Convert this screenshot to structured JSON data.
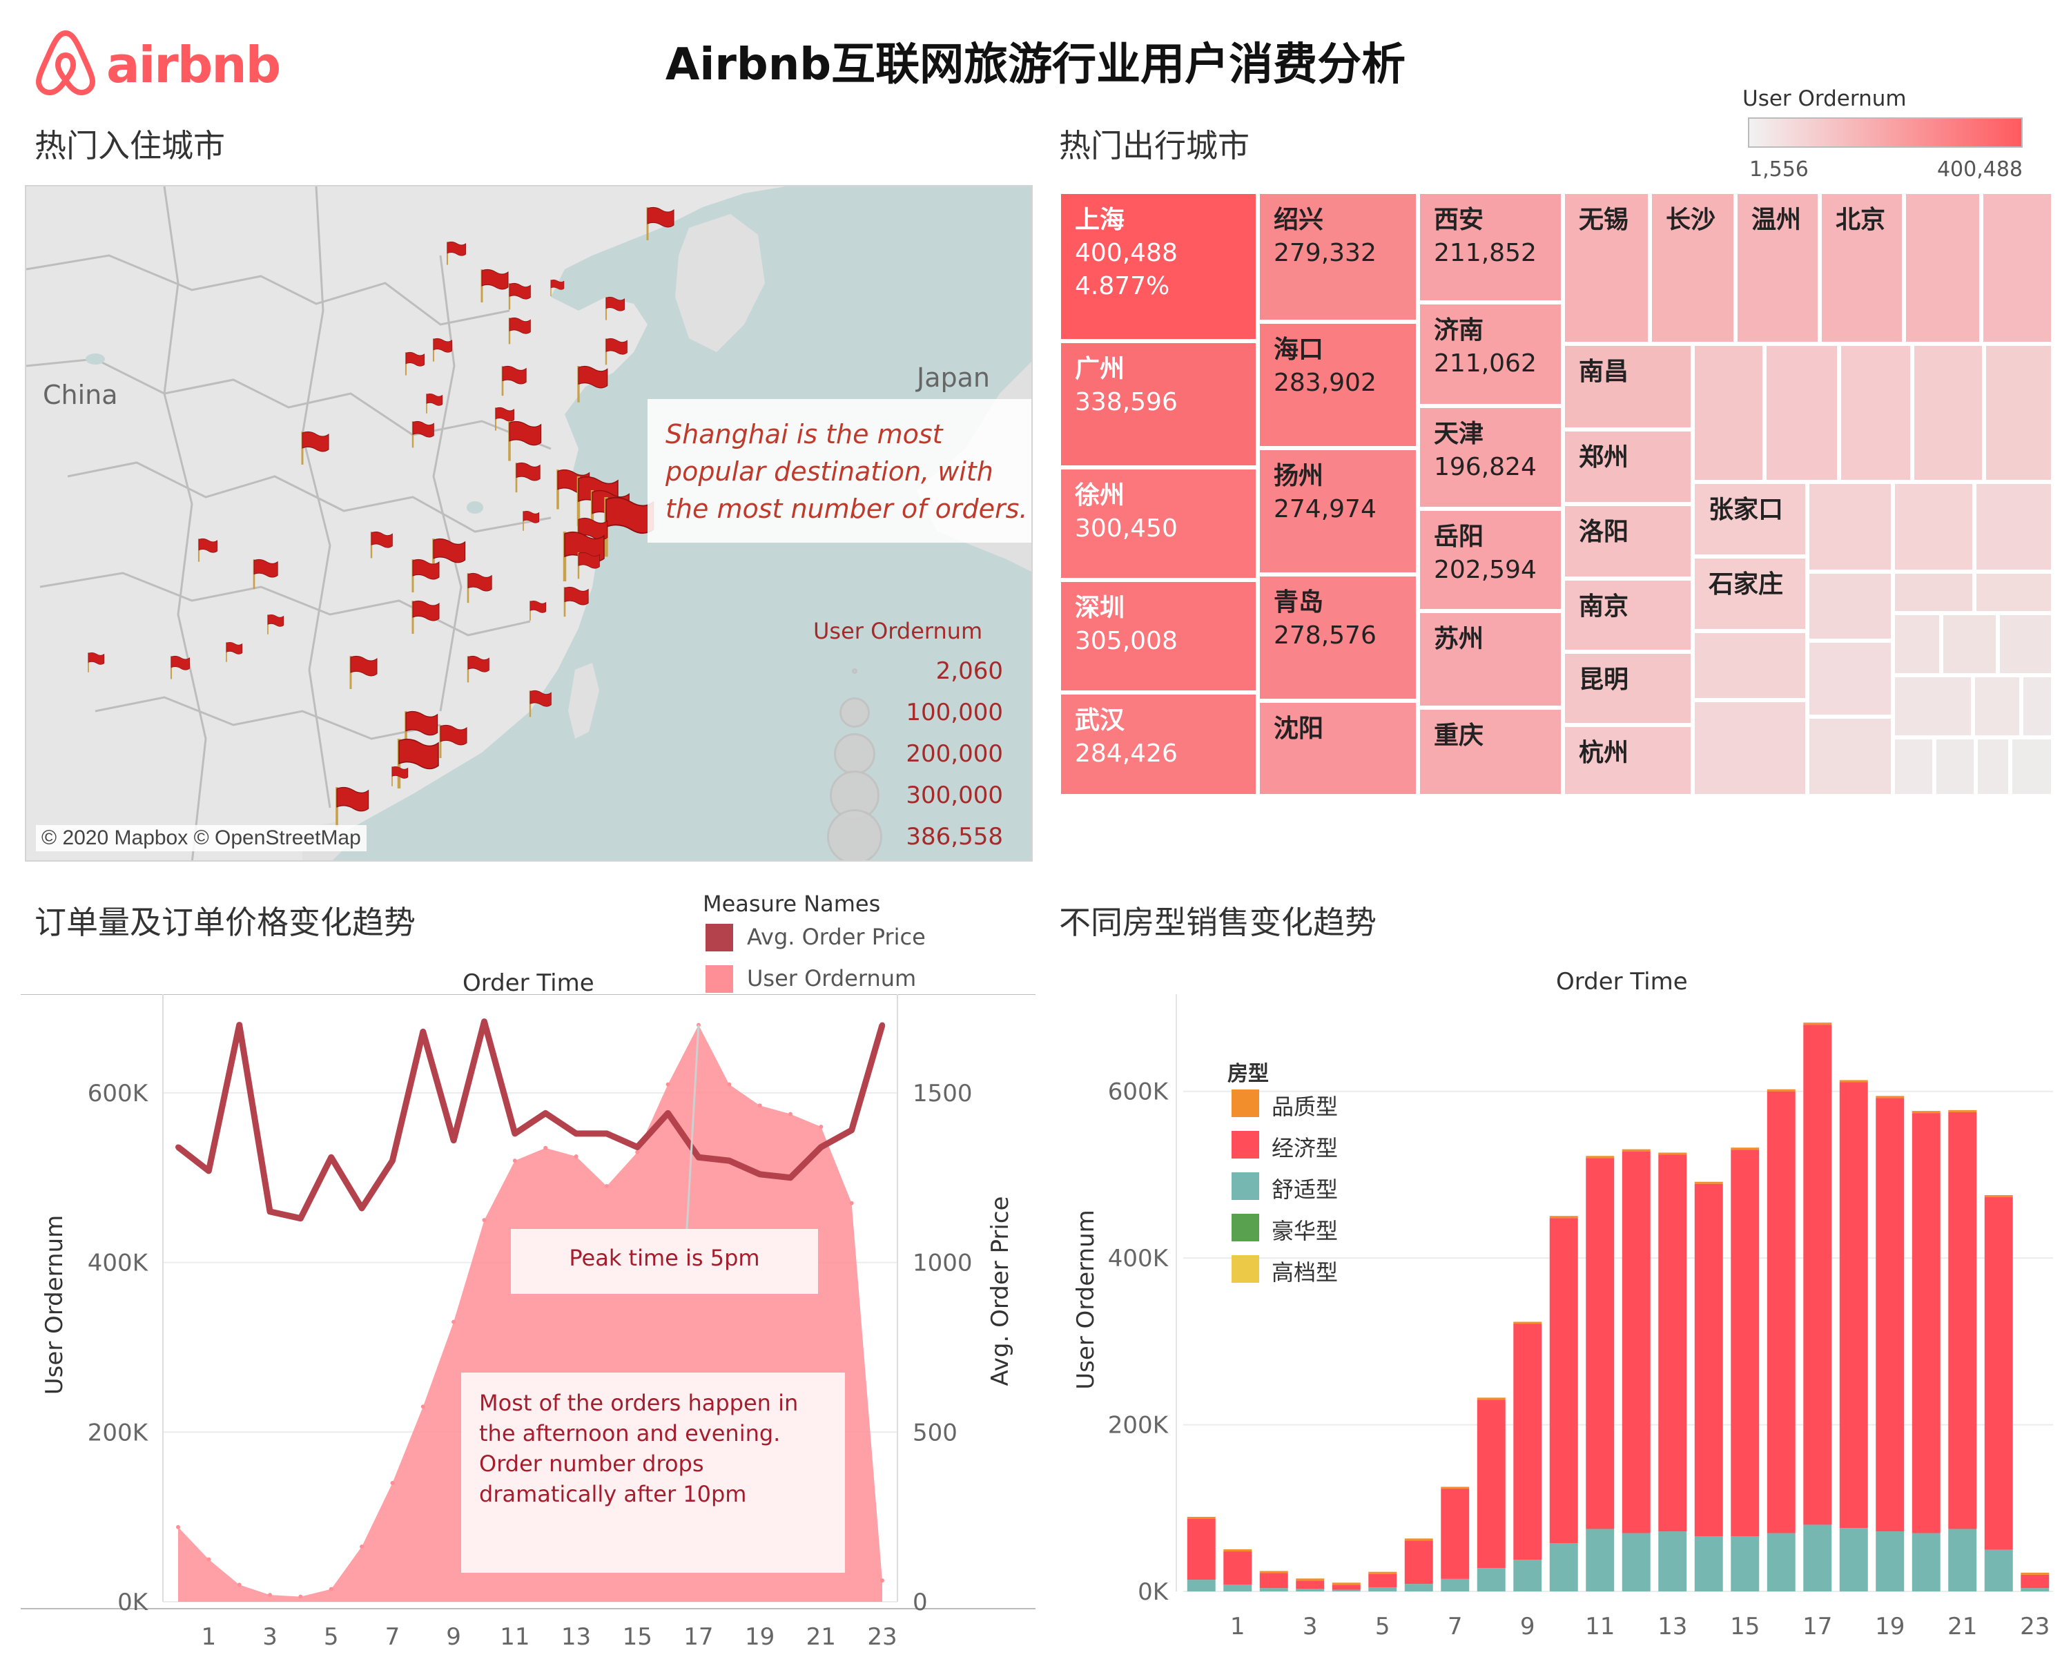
{
  "header": {
    "brand": "airbnb",
    "title": "Airbnb互联网旅游行业用户消费分析"
  },
  "map_panel": {
    "title": "热门入住城市",
    "label_china": "China",
    "label_japan": "Japan",
    "annotation": "Shanghai is the most popular destination, with the most number of orders.",
    "credit": "© 2020 Mapbox © OpenStreetMap",
    "size_legend": {
      "title": "User Ordernum",
      "values": [
        "2,060",
        "100,000",
        "200,000",
        "300,000",
        "386,558"
      ]
    },
    "flag_color": "#cc1d1d",
    "sea_color": "#c5d6d6",
    "land_color": "#e6e6e6"
  },
  "treemap_panel": {
    "title": "热门出行城市",
    "legend": {
      "title": "User Ordernum",
      "min": "1,556",
      "max": "400,488"
    },
    "cells": [
      {
        "name": "上海",
        "value": "400,488",
        "pct": "4.877%"
      },
      {
        "name": "广州",
        "value": "338,596"
      },
      {
        "name": "徐州",
        "value": "300,450"
      },
      {
        "name": "深圳",
        "value": "305,008"
      },
      {
        "name": "武汉",
        "value": "284,426"
      },
      {
        "name": "绍兴",
        "value": "279,332"
      },
      {
        "name": "海口",
        "value": "283,902"
      },
      {
        "name": "扬州",
        "value": "274,974"
      },
      {
        "name": "青岛",
        "value": "278,576"
      },
      {
        "name": "沈阳",
        "value": ""
      },
      {
        "name": "西安",
        "value": "211,852"
      },
      {
        "name": "济南",
        "value": "211,062"
      },
      {
        "name": "天津",
        "value": "196,824"
      },
      {
        "name": "岳阳",
        "value": "202,594"
      },
      {
        "name": "苏州",
        "value": ""
      },
      {
        "name": "重庆",
        "value": ""
      },
      {
        "name": "无锡",
        "value": ""
      },
      {
        "name": "长沙",
        "value": ""
      },
      {
        "name": "温州",
        "value": ""
      },
      {
        "name": "北京",
        "value": ""
      },
      {
        "name": "南昌",
        "value": ""
      },
      {
        "name": "郑州",
        "value": ""
      },
      {
        "name": "洛阳",
        "value": ""
      },
      {
        "name": "南京",
        "value": ""
      },
      {
        "name": "昆明",
        "value": ""
      },
      {
        "name": "杭州",
        "value": ""
      },
      {
        "name": "张家口",
        "value": ""
      },
      {
        "name": "石家庄",
        "value": ""
      }
    ]
  },
  "chart_data": [
    {
      "type": "area",
      "panel_title": "订单量及订单价格变化趋势",
      "title": "Order Time",
      "legend_title": "Measure Names",
      "xlabel": "Order Time",
      "ylabel": "User Ordernum",
      "y2label": "Avg. Order Price",
      "x": [
        0,
        1,
        2,
        3,
        4,
        5,
        6,
        7,
        8,
        9,
        10,
        11,
        12,
        13,
        14,
        15,
        16,
        17,
        18,
        19,
        20,
        21,
        22,
        23
      ],
      "x_ticks": [
        "1",
        "3",
        "5",
        "7",
        "9",
        "11",
        "13",
        "15",
        "17",
        "19",
        "21",
        "23"
      ],
      "y_ticks": [
        "600K",
        "400K",
        "200K",
        "0K"
      ],
      "y2_ticks": [
        "1500",
        "1000",
        "500",
        "0"
      ],
      "ylim": [
        0,
        700000
      ],
      "y2lim": [
        0,
        1750
      ],
      "series": [
        {
          "name": "User Ordernum",
          "axis": "left",
          "color": "#ff8f96",
          "values": [
            88000,
            50000,
            20000,
            8000,
            6000,
            15000,
            65000,
            140000,
            230000,
            330000,
            450000,
            520000,
            535000,
            525000,
            490000,
            530000,
            610000,
            680000,
            610000,
            585000,
            575000,
            560000,
            470000,
            25000
          ]
        },
        {
          "name": "Avg. Order Price",
          "axis": "right",
          "color": "#b4424c",
          "values": [
            1340,
            1270,
            1700,
            1150,
            1130,
            1310,
            1160,
            1300,
            1680,
            1360,
            1710,
            1380,
            1440,
            1380,
            1380,
            1340,
            1440,
            1310,
            1300,
            1260,
            1250,
            1340,
            1390,
            1700
          ]
        }
      ],
      "annotations": [
        "Peak time is 5pm",
        "Most of the orders happen in the afternoon and evening. Order number drops dramatically after 10pm"
      ]
    },
    {
      "type": "bar",
      "panel_title": "不同房型销售变化趋势",
      "title": "Order Time",
      "xlabel": "Order Time",
      "ylabel": "User Ordernum",
      "stacked": true,
      "legend_title": "房型",
      "x": [
        0,
        1,
        2,
        3,
        4,
        5,
        6,
        7,
        8,
        9,
        10,
        11,
        12,
        13,
        14,
        15,
        16,
        17,
        18,
        19,
        20,
        21,
        22,
        23
      ],
      "x_ticks": [
        "1",
        "3",
        "5",
        "7",
        "9",
        "11",
        "13",
        "15",
        "17",
        "19",
        "21",
        "23"
      ],
      "y_ticks": [
        "600K",
        "400K",
        "200K",
        "0K"
      ],
      "ylim": [
        0,
        700000
      ],
      "series": [
        {
          "name": "品质型",
          "color": "#f28e2b",
          "values": [
            0,
            0,
            0,
            0,
            0,
            0,
            0,
            0,
            0,
            0,
            0,
            0,
            0,
            0,
            0,
            0,
            0,
            0,
            0,
            0,
            0,
            0,
            0,
            0
          ]
        },
        {
          "name": "经济型",
          "color": "#ff4e59",
          "values": [
            73000,
            40000,
            18000,
            10000,
            6000,
            16000,
            52000,
            108000,
            202000,
            283000,
            390000,
            445000,
            458000,
            452000,
            423000,
            464000,
            530000,
            600000,
            535000,
            520000,
            504000,
            500000,
            423000,
            16000
          ]
        },
        {
          "name": "舒适型",
          "color": "#76b7b2",
          "values": [
            14000,
            8000,
            4000,
            3000,
            2000,
            5000,
            9000,
            15000,
            28000,
            38000,
            58000,
            75000,
            70000,
            72000,
            66000,
            66000,
            70000,
            80000,
            76000,
            72000,
            70000,
            75000,
            50000,
            4000
          ]
        },
        {
          "name": "豪华型",
          "color": "#59a14f",
          "values": [
            0,
            0,
            0,
            0,
            0,
            0,
            0,
            0,
            0,
            0,
            0,
            0,
            0,
            0,
            0,
            0,
            0,
            0,
            0,
            0,
            0,
            0,
            0,
            0
          ]
        },
        {
          "name": "高档型",
          "color": "#edc948",
          "values": [
            0,
            0,
            0,
            0,
            0,
            0,
            0,
            0,
            0,
            0,
            0,
            0,
            0,
            0,
            0,
            0,
            0,
            0,
            0,
            0,
            0,
            0,
            0,
            0
          ]
        }
      ]
    }
  ]
}
